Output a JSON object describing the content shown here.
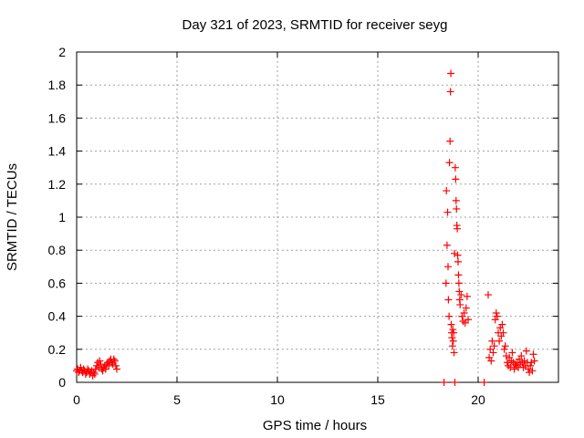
{
  "chart_data": {
    "type": "scatter",
    "title": "Day 321 of 2023, SRMTID for receiver seyg",
    "xlabel": "GPS time / hours",
    "ylabel": "SRMTID / TECUs",
    "xlim": [
      0,
      24
    ],
    "ylim": [
      0,
      2
    ],
    "xticks": [
      0,
      5,
      10,
      15,
      20
    ],
    "yticks": [
      0,
      0.2,
      0.4,
      0.6,
      0.8,
      1,
      1.2,
      1.4,
      1.6,
      1.8,
      2
    ],
    "xtick_labels": [
      "0",
      "5",
      "10",
      "15",
      "20"
    ],
    "ytick_labels": [
      "0",
      "0.2",
      "0.4",
      "0.6",
      "0.8",
      "1",
      "1.2",
      "1.4",
      "1.6",
      "1.8",
      "2"
    ],
    "grid": true,
    "marker": "+",
    "marker_color": "#ff0000",
    "series": [
      {
        "name": "SRMTID",
        "points": [
          [
            0.0,
            0.07
          ],
          [
            0.05,
            0.08
          ],
          [
            0.1,
            0.06
          ],
          [
            0.15,
            0.07
          ],
          [
            0.2,
            0.09
          ],
          [
            0.25,
            0.07
          ],
          [
            0.3,
            0.06
          ],
          [
            0.35,
            0.08
          ],
          [
            0.4,
            0.07
          ],
          [
            0.45,
            0.05
          ],
          [
            0.5,
            0.06
          ],
          [
            0.55,
            0.08
          ],
          [
            0.6,
            0.07
          ],
          [
            0.65,
            0.05
          ],
          [
            0.7,
            0.06
          ],
          [
            0.75,
            0.07
          ],
          [
            0.8,
            0.04
          ],
          [
            0.85,
            0.06
          ],
          [
            0.9,
            0.05
          ],
          [
            0.95,
            0.08
          ],
          [
            1.0,
            0.1
          ],
          [
            1.05,
            0.12
          ],
          [
            1.1,
            0.09
          ],
          [
            1.15,
            0.13
          ],
          [
            1.2,
            0.11
          ],
          [
            1.25,
            0.08
          ],
          [
            1.3,
            0.07
          ],
          [
            1.35,
            0.09
          ],
          [
            1.4,
            0.1
          ],
          [
            1.45,
            0.08
          ],
          [
            1.5,
            0.11
          ],
          [
            1.55,
            0.12
          ],
          [
            1.6,
            0.1
          ],
          [
            1.65,
            0.13
          ],
          [
            1.7,
            0.14
          ],
          [
            1.75,
            0.12
          ],
          [
            1.8,
            0.11
          ],
          [
            1.85,
            0.14
          ],
          [
            1.9,
            0.13
          ],
          [
            1.95,
            0.1
          ],
          [
            2.0,
            0.08
          ],
          [
            18.3,
            0.0
          ],
          [
            18.4,
            0.6
          ],
          [
            18.42,
            1.16
          ],
          [
            18.45,
            0.83
          ],
          [
            18.48,
            1.03
          ],
          [
            18.5,
            0.7
          ],
          [
            18.52,
            0.5
          ],
          [
            18.55,
            0.4
          ],
          [
            18.57,
            1.33
          ],
          [
            18.6,
            1.46
          ],
          [
            18.62,
            1.76
          ],
          [
            18.64,
            1.87
          ],
          [
            18.66,
            0.35
          ],
          [
            18.68,
            0.3
          ],
          [
            18.7,
            0.27
          ],
          [
            18.72,
            0.22
          ],
          [
            18.74,
            0.32
          ],
          [
            18.76,
            0.25
          ],
          [
            18.78,
            0.3
          ],
          [
            18.8,
            0.18
          ],
          [
            18.82,
            0.78
          ],
          [
            18.84,
            0.0
          ],
          [
            18.86,
            1.3
          ],
          [
            18.88,
            1.23
          ],
          [
            18.9,
            1.1
          ],
          [
            18.92,
            1.05
          ],
          [
            18.94,
            0.95
          ],
          [
            18.96,
            0.93
          ],
          [
            18.98,
            0.77
          ],
          [
            19.0,
            0.73
          ],
          [
            19.02,
            0.65
          ],
          [
            19.04,
            0.6
          ],
          [
            19.06,
            0.55
          ],
          [
            19.08,
            0.5
          ],
          [
            19.1,
            0.47
          ],
          [
            19.15,
            0.53
          ],
          [
            19.2,
            0.4
          ],
          [
            19.25,
            0.37
          ],
          [
            19.3,
            0.42
          ],
          [
            19.35,
            0.36
          ],
          [
            19.4,
            0.45
          ],
          [
            19.45,
            0.52
          ],
          [
            19.5,
            0.38
          ],
          [
            20.3,
            0.0
          ],
          [
            20.5,
            0.53
          ],
          [
            20.55,
            0.15
          ],
          [
            20.6,
            0.2
          ],
          [
            20.65,
            0.13
          ],
          [
            20.7,
            0.25
          ],
          [
            20.75,
            0.18
          ],
          [
            20.8,
            0.22
          ],
          [
            20.85,
            0.38
          ],
          [
            20.9,
            0.42
          ],
          [
            20.95,
            0.4
          ],
          [
            21.0,
            0.3
          ],
          [
            21.05,
            0.25
          ],
          [
            21.1,
            0.33
          ],
          [
            21.15,
            0.28
          ],
          [
            21.2,
            0.35
          ],
          [
            21.25,
            0.3
          ],
          [
            21.3,
            0.2
          ],
          [
            21.35,
            0.22
          ],
          [
            21.4,
            0.16
          ],
          [
            21.45,
            0.12
          ],
          [
            21.5,
            0.1
          ],
          [
            21.55,
            0.15
          ],
          [
            21.6,
            0.09
          ],
          [
            21.65,
            0.13
          ],
          [
            21.7,
            0.18
          ],
          [
            21.75,
            0.12
          ],
          [
            21.8,
            0.08
          ],
          [
            21.85,
            0.11
          ],
          [
            21.9,
            0.1
          ],
          [
            21.95,
            0.12
          ],
          [
            22.0,
            0.09
          ],
          [
            22.05,
            0.14
          ],
          [
            22.1,
            0.11
          ],
          [
            22.15,
            0.16
          ],
          [
            22.2,
            0.12
          ],
          [
            22.25,
            0.09
          ],
          [
            22.3,
            0.13
          ],
          [
            22.35,
            0.1
          ],
          [
            22.4,
            0.19
          ],
          [
            22.45,
            0.12
          ],
          [
            22.5,
            0.08
          ],
          [
            22.55,
            0.06
          ],
          [
            22.6,
            0.1
          ],
          [
            22.65,
            0.12
          ],
          [
            22.7,
            0.07
          ],
          [
            22.75,
            0.17
          ],
          [
            22.8,
            0.13
          ]
        ]
      }
    ]
  }
}
